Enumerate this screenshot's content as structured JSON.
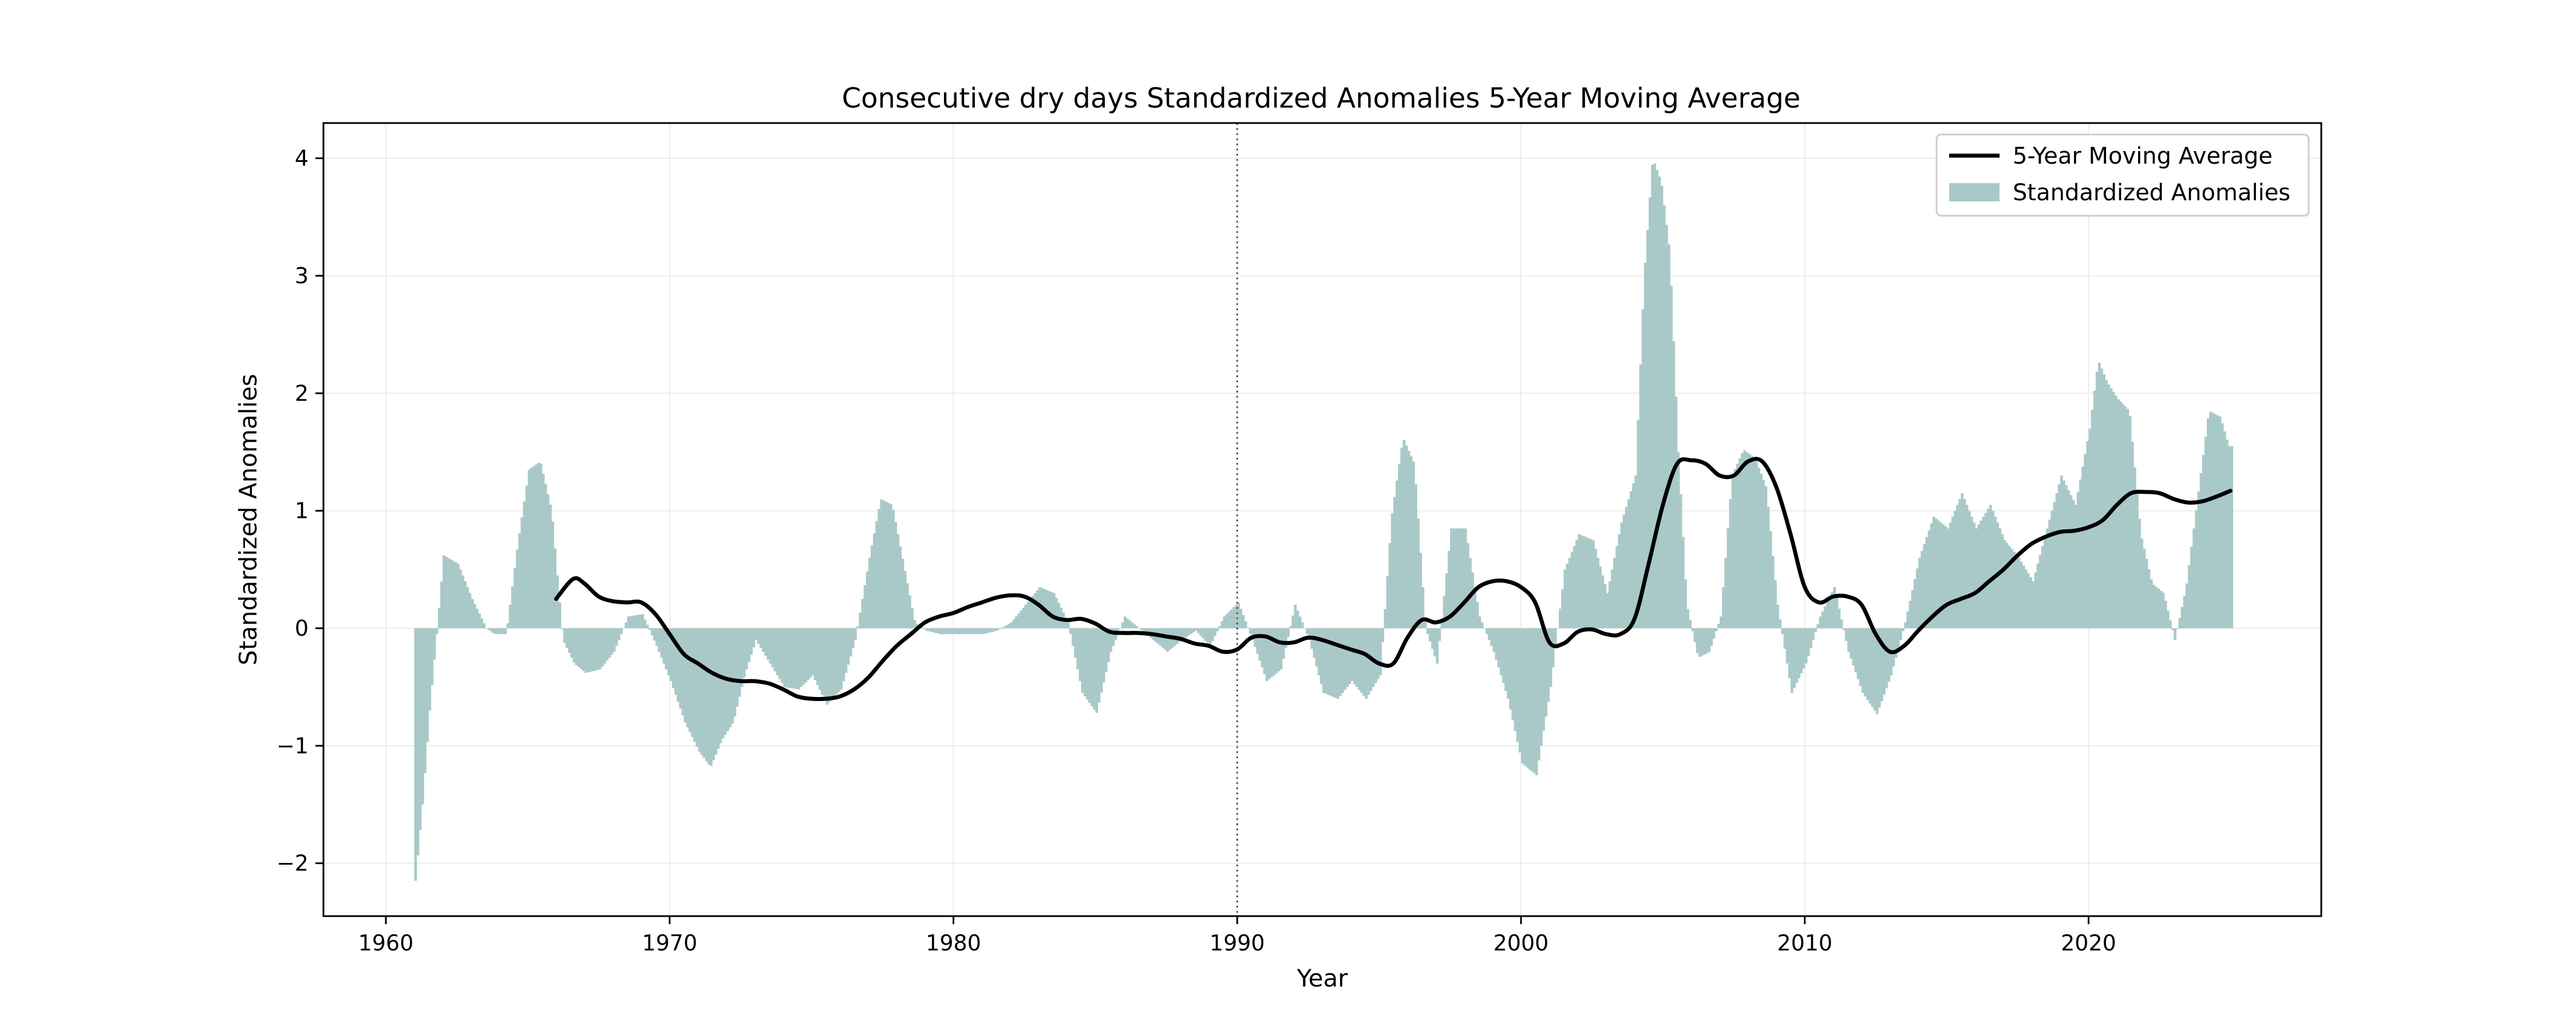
{
  "chart_data": {
    "type": "bar",
    "title": "Consecutive dry days Standardized Anomalies 5-Year Moving Average",
    "xlabel": "Year",
    "ylabel": "Standardized Anomalies",
    "xlim": [
      1957.8,
      2028.2
    ],
    "ylim": [
      -2.45,
      4.3
    ],
    "xticks": [
      1960,
      1970,
      1980,
      1990,
      2000,
      2010,
      2020
    ],
    "yticks": [
      -2,
      -1,
      0,
      1,
      2,
      3,
      4
    ],
    "ytick_labels": [
      "−2",
      "−1",
      "0",
      "1",
      "2",
      "3",
      "4"
    ],
    "grid": true,
    "legend_position": "top-right",
    "reference_line": {
      "x": 1990,
      "style": "dotted"
    },
    "colors": {
      "anomalies": "#a9c9c8",
      "moving_average": "#000000"
    },
    "series": [
      {
        "name": "Standardized Anomalies",
        "kind": "bar",
        "x": [
          1961.0,
          1961.25,
          1961.5,
          1961.75,
          1962.0,
          1962.5,
          1963.0,
          1963.5,
          1963.8,
          1964.2,
          1964.6,
          1965.0,
          1965.4,
          1965.8,
          1966.2,
          1966.6,
          1967.0,
          1967.5,
          1968.0,
          1968.5,
          1969.0,
          1969.5,
          1970.0,
          1970.5,
          1971.0,
          1971.4,
          1971.8,
          1972.2,
          1972.6,
          1973.0,
          1973.5,
          1974.0,
          1974.5,
          1975.0,
          1975.5,
          1976.0,
          1976.5,
          1977.0,
          1977.4,
          1977.8,
          1978.2,
          1978.6,
          1979.0,
          1979.5,
          1980.0,
          1980.5,
          1981.0,
          1981.5,
          1982.0,
          1982.5,
          1983.0,
          1983.5,
          1984.0,
          1984.5,
          1985.0,
          1985.5,
          1986.0,
          1986.5,
          1987.0,
          1987.5,
          1988.0,
          1988.5,
          1989.0,
          1989.5,
          1990.0,
          1990.5,
          1991.0,
          1991.5,
          1992.0,
          1992.5,
          1993.0,
          1993.5,
          1994.0,
          1994.5,
          1995.0,
          1995.4,
          1995.8,
          1996.2,
          1996.6,
          1997.0,
          1997.5,
          1998.0,
          1998.5,
          1999.0,
          1999.5,
          2000.0,
          2000.5,
          2001.0,
          2001.5,
          2002.0,
          2002.5,
          2003.0,
          2003.5,
          2004.0,
          2004.3,
          2004.6,
          2004.9,
          2005.2,
          2005.5,
          2005.8,
          2006.2,
          2006.6,
          2007.0,
          2007.4,
          2007.8,
          2008.2,
          2008.6,
          2009.0,
          2009.5,
          2010.0,
          2010.5,
          2011.0,
          2011.5,
          2012.0,
          2012.5,
          2013.0,
          2013.5,
          2014.0,
          2014.5,
          2015.0,
          2015.5,
          2016.0,
          2016.5,
          2017.0,
          2017.5,
          2018.0,
          2018.5,
          2019.0,
          2019.5,
          2020.0,
          2020.3,
          2020.6,
          2021.0,
          2021.4,
          2021.8,
          2022.2,
          2022.6,
          2023.0,
          2023.4,
          2023.8,
          2024.2,
          2024.6,
          2024.9
        ],
        "values": [
          -2.15,
          -1.5,
          -0.7,
          -0.05,
          0.62,
          0.55,
          0.25,
          0.0,
          -0.05,
          -0.05,
          0.7,
          1.35,
          1.42,
          1.0,
          -0.1,
          -0.3,
          -0.38,
          -0.35,
          -0.2,
          0.1,
          0.12,
          -0.15,
          -0.45,
          -0.8,
          -1.05,
          -1.18,
          -0.95,
          -0.8,
          -0.4,
          -0.1,
          -0.3,
          -0.5,
          -0.52,
          -0.4,
          -0.65,
          -0.52,
          -0.1,
          0.6,
          1.1,
          1.05,
          0.55,
          0.05,
          -0.02,
          -0.05,
          -0.05,
          -0.05,
          -0.05,
          -0.02,
          0.05,
          0.2,
          0.35,
          0.3,
          0.05,
          -0.55,
          -0.72,
          -0.2,
          0.1,
          0.0,
          -0.1,
          -0.2,
          -0.1,
          -0.02,
          -0.15,
          0.1,
          0.22,
          -0.1,
          -0.45,
          -0.35,
          0.2,
          -0.1,
          -0.55,
          -0.6,
          -0.45,
          -0.6,
          -0.4,
          0.95,
          1.62,
          1.4,
          0.0,
          -0.3,
          0.85,
          0.85,
          0.1,
          -0.2,
          -0.6,
          -1.15,
          -1.25,
          -0.5,
          0.5,
          0.8,
          0.75,
          0.3,
          0.9,
          1.3,
          3.0,
          4.0,
          3.8,
          3.2,
          1.5,
          0.2,
          -0.25,
          -0.2,
          0.1,
          1.3,
          1.52,
          1.45,
          1.2,
          0.2,
          -0.55,
          -0.3,
          0.1,
          0.35,
          -0.2,
          -0.55,
          -0.73,
          -0.4,
          0.05,
          0.6,
          0.95,
          0.85,
          1.15,
          0.85,
          1.05,
          0.75,
          0.6,
          0.4,
          0.85,
          1.3,
          1.05,
          1.7,
          2.28,
          2.1,
          1.95,
          1.85,
          0.8,
          0.38,
          0.3,
          -0.1,
          0.35,
          1.1,
          1.85,
          1.8,
          1.55
        ]
      },
      {
        "name": "5-Year Moving Average",
        "kind": "line",
        "x": [
          1966.0,
          1966.6,
          1967.0,
          1967.5,
          1968.0,
          1968.5,
          1969.0,
          1969.5,
          1970.0,
          1970.5,
          1971.0,
          1971.5,
          1972.0,
          1972.5,
          1973.0,
          1973.5,
          1974.0,
          1974.5,
          1975.0,
          1975.5,
          1976.0,
          1976.5,
          1977.0,
          1977.5,
          1978.0,
          1978.5,
          1979.0,
          1979.5,
          1980.0,
          1980.5,
          1981.0,
          1981.5,
          1982.0,
          1982.5,
          1983.0,
          1983.5,
          1984.0,
          1984.5,
          1985.0,
          1985.5,
          1986.0,
          1986.5,
          1987.0,
          1987.5,
          1988.0,
          1988.5,
          1989.0,
          1989.5,
          1990.0,
          1990.5,
          1991.0,
          1991.5,
          1992.0,
          1992.5,
          1993.0,
          1993.5,
          1994.0,
          1994.5,
          1995.0,
          1995.5,
          1996.0,
          1996.5,
          1997.0,
          1997.5,
          1998.0,
          1998.5,
          1999.0,
          1999.5,
          2000.0,
          2000.5,
          2001.0,
          2001.5,
          2002.0,
          2002.5,
          2003.0,
          2003.5,
          2004.0,
          2004.5,
          2005.0,
          2005.5,
          2006.0,
          2006.5,
          2007.0,
          2007.5,
          2008.0,
          2008.5,
          2009.0,
          2009.5,
          2010.0,
          2010.5,
          2011.0,
          2011.5,
          2012.0,
          2012.5,
          2013.0,
          2013.5,
          2014.0,
          2014.5,
          2015.0,
          2015.5,
          2016.0,
          2016.5,
          2017.0,
          2017.5,
          2018.0,
          2018.5,
          2019.0,
          2019.5,
          2020.0,
          2020.5,
          2021.0,
          2021.5,
          2022.0,
          2022.5,
          2023.0,
          2023.5,
          2024.0,
          2024.5,
          2025.0
        ],
        "values": [
          0.25,
          0.42,
          0.38,
          0.27,
          0.23,
          0.22,
          0.22,
          0.12,
          -0.05,
          -0.22,
          -0.3,
          -0.38,
          -0.43,
          -0.45,
          -0.45,
          -0.47,
          -0.52,
          -0.58,
          -0.6,
          -0.6,
          -0.58,
          -0.52,
          -0.42,
          -0.28,
          -0.15,
          -0.05,
          0.05,
          0.1,
          0.13,
          0.18,
          0.22,
          0.26,
          0.28,
          0.27,
          0.2,
          0.1,
          0.07,
          0.08,
          0.04,
          -0.03,
          -0.04,
          -0.04,
          -0.05,
          -0.07,
          -0.09,
          -0.13,
          -0.15,
          -0.2,
          -0.18,
          -0.08,
          -0.07,
          -0.12,
          -0.12,
          -0.08,
          -0.1,
          -0.14,
          -0.18,
          -0.22,
          -0.3,
          -0.3,
          -0.08,
          0.07,
          0.05,
          0.1,
          0.22,
          0.35,
          0.4,
          0.4,
          0.35,
          0.22,
          -0.12,
          -0.13,
          -0.03,
          -0.01,
          -0.05,
          -0.05,
          0.08,
          0.55,
          1.05,
          1.4,
          1.43,
          1.4,
          1.3,
          1.3,
          1.42,
          1.42,
          1.2,
          0.8,
          0.35,
          0.22,
          0.27,
          0.27,
          0.2,
          -0.05,
          -0.2,
          -0.15,
          -0.02,
          0.1,
          0.2,
          0.25,
          0.3,
          0.4,
          0.5,
          0.62,
          0.72,
          0.78,
          0.82,
          0.83,
          0.86,
          0.92,
          1.05,
          1.15,
          1.16,
          1.15,
          1.1,
          1.07,
          1.08,
          1.12,
          1.17
        ]
      }
    ]
  }
}
